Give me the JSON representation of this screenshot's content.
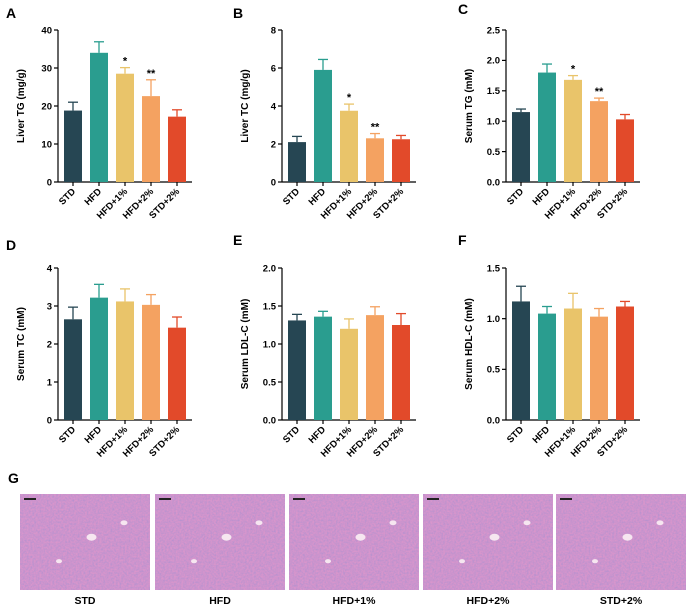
{
  "colors": {
    "STD": "#264653",
    "HFD": "#2a9d8f",
    "HFD+1%": "#e9c46a",
    "HFD+2%": "#f4a261",
    "STD+2%": "#e24a2a",
    "tissue_base": "#d896cc",
    "tissue_dark": "#9a6cb3"
  },
  "chart_data": [
    {
      "panel": "A",
      "type": "bar",
      "categories": [
        "STD",
        "HFD",
        "HFD+1%",
        "HFD+2%",
        "STD+2%"
      ],
      "values": [
        18.8,
        34.0,
        28.5,
        22.6,
        17.2
      ],
      "errors": [
        2.2,
        2.9,
        1.6,
        4.3,
        1.8
      ],
      "significance": [
        "",
        "",
        "*",
        "**",
        ""
      ],
      "ylabel": "Liver TG (mg/g)",
      "ylim": [
        0,
        40
      ],
      "ticks": [
        0,
        10,
        20,
        30,
        40
      ],
      "tick_labels": [
        "0",
        "10",
        "20",
        "30",
        "40"
      ]
    },
    {
      "panel": "B",
      "type": "bar",
      "categories": [
        "STD",
        "HFD",
        "HFD+1%",
        "HFD+2%",
        "STD+2%"
      ],
      "values": [
        2.1,
        5.9,
        3.75,
        2.3,
        2.25
      ],
      "errors": [
        0.3,
        0.55,
        0.35,
        0.25,
        0.2
      ],
      "significance": [
        "",
        "",
        "*",
        "**",
        ""
      ],
      "ylabel": "Liver TC (mg/g)",
      "ylim": [
        0,
        8
      ],
      "ticks": [
        0,
        2,
        4,
        6,
        8
      ],
      "tick_labels": [
        "0",
        "2",
        "4",
        "6",
        "8"
      ]
    },
    {
      "panel": "C",
      "type": "bar",
      "categories": [
        "STD",
        "HFD",
        "HFD+1%",
        "HFD+2%",
        "STD+2%"
      ],
      "values": [
        1.15,
        1.8,
        1.68,
        1.33,
        1.03
      ],
      "errors": [
        0.05,
        0.14,
        0.07,
        0.05,
        0.08
      ],
      "significance": [
        "",
        "",
        "*",
        "**",
        ""
      ],
      "ylabel": "Serum TG (mM)",
      "ylim": [
        0,
        2.5
      ],
      "ticks": [
        0,
        0.5,
        1,
        1.5,
        2,
        2.5
      ],
      "tick_labels": [
        "0.0",
        "0.5",
        "1.0",
        "1.5",
        "2.0",
        "2.5"
      ]
    },
    {
      "panel": "D",
      "type": "bar",
      "categories": [
        "STD",
        "HFD",
        "HFD+1%",
        "HFD+2%",
        "STD+2%"
      ],
      "values": [
        2.65,
        3.22,
        3.12,
        3.03,
        2.43
      ],
      "errors": [
        0.32,
        0.35,
        0.33,
        0.27,
        0.28
      ],
      "significance": [
        "",
        "",
        "",
        "",
        ""
      ],
      "ylabel": "Serum TC (mM)",
      "ylim": [
        0,
        4
      ],
      "ticks": [
        0,
        1,
        2,
        3,
        4
      ],
      "tick_labels": [
        "0",
        "1",
        "2",
        "3",
        "4"
      ]
    },
    {
      "panel": "E",
      "type": "bar",
      "categories": [
        "STD",
        "HFD",
        "HFD+1%",
        "HFD+2%",
        "STD+2%"
      ],
      "values": [
        1.31,
        1.36,
        1.2,
        1.38,
        1.25
      ],
      "errors": [
        0.08,
        0.07,
        0.13,
        0.11,
        0.15
      ],
      "significance": [
        "",
        "",
        "",
        "",
        ""
      ],
      "ylabel": "Serum LDL-C (mM)",
      "ylim": [
        0,
        2
      ],
      "ticks": [
        0,
        0.5,
        1,
        1.5,
        2
      ],
      "tick_labels": [
        "0.0",
        "0.5",
        "1.0",
        "1.5",
        "2.0"
      ]
    },
    {
      "panel": "F",
      "type": "bar",
      "categories": [
        "STD",
        "HFD",
        "HFD+1%",
        "HFD+2%",
        "STD+2%"
      ],
      "values": [
        1.17,
        1.05,
        1.1,
        1.02,
        1.12
      ],
      "errors": [
        0.15,
        0.07,
        0.15,
        0.08,
        0.05
      ],
      "significance": [
        "",
        "",
        "",
        "",
        ""
      ],
      "ylabel": "Serum HDL-C (mM)",
      "ylim": [
        0,
        1.5
      ],
      "ticks": [
        0,
        0.5,
        1,
        1.5
      ],
      "tick_labels": [
        "0.0",
        "0.5",
        "1.0",
        "1.5"
      ]
    }
  ],
  "histology": {
    "panel": "G",
    "labels": [
      "STD",
      "HFD",
      "HFD+1%",
      "HFD+2%",
      "STD+2%"
    ]
  }
}
